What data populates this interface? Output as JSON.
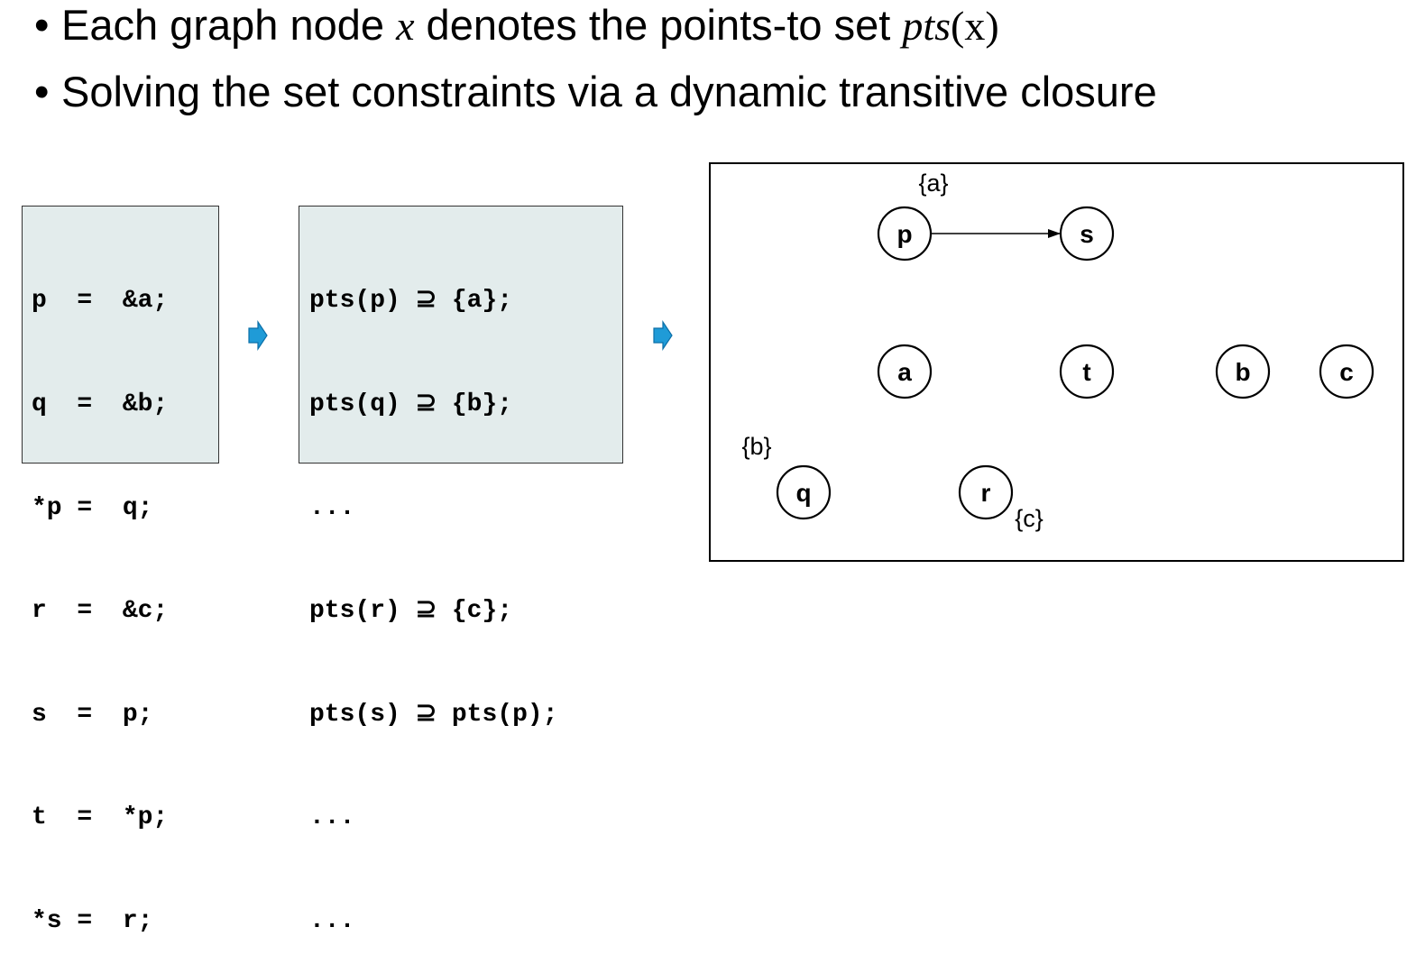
{
  "bullets": [
    {
      "glyph": "•",
      "before": "Each graph node ",
      "var": "x",
      "middle": " denotes the points-to set ",
      "fn": "pts",
      "fn_arg": "(x)"
    },
    {
      "glyph": "•",
      "text": "Solving the set constraints via a dynamic transitive closure"
    }
  ],
  "code_lines": [
    "p  =  &a;",
    "q  =  &b;",
    "*p =  q;",
    "r  =  &c;",
    "s  =  p;",
    "t  =  *p;",
    "*s =  r;"
  ],
  "constraint_lines": [
    "pts(p) ⊇ {a};",
    "pts(q) ⊇ {b};",
    "...",
    "pts(r) ⊇ {c};",
    "pts(s) ⊇ pts(p);",
    "...",
    "..."
  ],
  "arrow_color": "#1f9bd7",
  "graph": {
    "nodes": [
      {
        "id": "p",
        "label": "p",
        "set": "{a}"
      },
      {
        "id": "s",
        "label": "s"
      },
      {
        "id": "a",
        "label": "a"
      },
      {
        "id": "t",
        "label": "t"
      },
      {
        "id": "b",
        "label": "b"
      },
      {
        "id": "c",
        "label": "c"
      },
      {
        "id": "q",
        "label": "q",
        "set": "{b}"
      },
      {
        "id": "r",
        "label": "r",
        "set": "{c}"
      }
    ],
    "edges": [
      {
        "from": "p",
        "to": "s"
      }
    ]
  }
}
